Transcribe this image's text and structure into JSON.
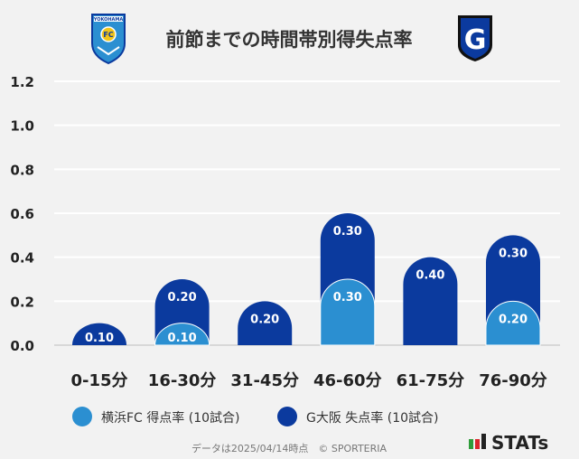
{
  "title": "前節までの時間帯別得失点率",
  "logos": {
    "left": {
      "name": "yokohama-fc-logo",
      "text": "YOKOHAMA",
      "badge": "FC"
    },
    "right": {
      "name": "gamba-osaka-logo",
      "letter": "G"
    }
  },
  "colors": {
    "series1": "#2b8fd1",
    "series2": "#0b3a9e",
    "grid": "#ffffff",
    "text": "#222222"
  },
  "chart_data": {
    "type": "bar",
    "stacked": true,
    "categories": [
      "0-15分",
      "16-30分",
      "31-45分",
      "46-60分",
      "61-75分",
      "76-90分"
    ],
    "series": [
      {
        "name": "横浜FC 得点率 (10試合)",
        "values": [
          0,
          0.1,
          0,
          0.3,
          0,
          0.2
        ],
        "labels": [
          "",
          "0.10",
          "",
          "0.30",
          "",
          "0.20"
        ]
      },
      {
        "name": "G大阪 失点率 (10試合)",
        "values": [
          0.1,
          0.2,
          0.2,
          0.3,
          0.4,
          0.3
        ],
        "labels": [
          "0.10",
          "0.20",
          "0.20",
          "0.30",
          "0.40",
          "0.30"
        ]
      }
    ],
    "yticks": [
      "0.0",
      "0.2",
      "0.4",
      "0.6",
      "0.8",
      "1.0",
      "1.2"
    ],
    "ylim": [
      0,
      1.2
    ],
    "grid": true,
    "legend_position": "bottom"
  },
  "footer": {
    "note": "データは2025/04/14時点　© SPORTERIA",
    "brand": "STATs"
  }
}
